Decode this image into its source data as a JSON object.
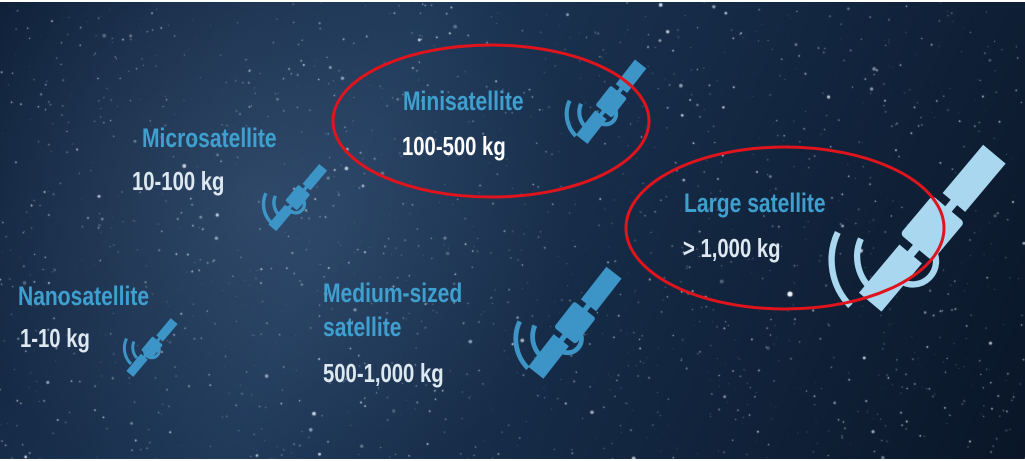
{
  "colors": {
    "name_text": "#3f9fcf",
    "mass_text": "#dde8f0",
    "mass_text_bright": "#ffffff",
    "satellite_blue": "#3c95c6",
    "satellite_light": "#a8d7ef",
    "highlight_red": "#e0141c",
    "sky_dark": "#0c1a2e",
    "sky_mid": "#1f3a5c"
  },
  "satellites": {
    "nano": {
      "name": "Nanosatellite",
      "mass": "1-10 kg",
      "icon": "satellite-icon"
    },
    "micro": {
      "name": "Microsatellite",
      "mass": "10-100 kg",
      "icon": "satellite-icon"
    },
    "mini": {
      "name": "Minisatellite",
      "mass": "100-500 kg",
      "icon": "satellite-icon",
      "highlighted": true
    },
    "medium": {
      "name_line1": "Medium-sized",
      "name_line2": "satellite",
      "mass": "500-1,000 kg",
      "icon": "satellite-icon"
    },
    "large": {
      "name": "Large satellite",
      "mass": "> 1,000 kg",
      "icon": "satellite-icon",
      "highlighted": true
    }
  }
}
